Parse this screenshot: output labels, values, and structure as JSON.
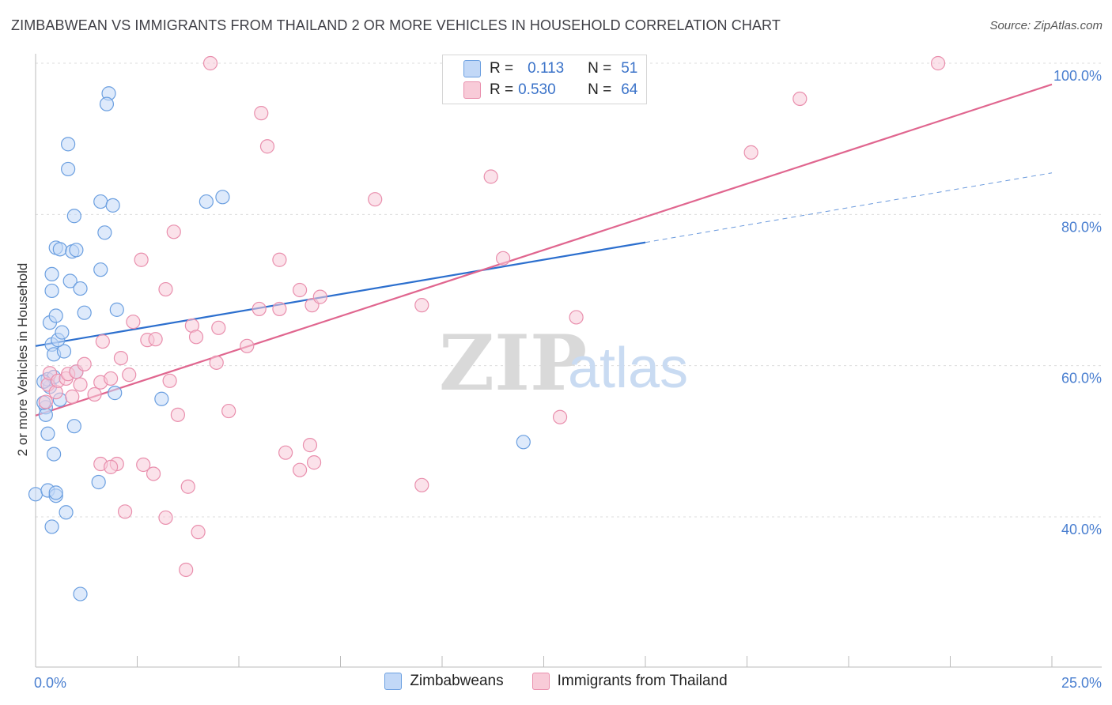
{
  "title": "ZIMBABWEAN VS IMMIGRANTS FROM THAILAND 2 OR MORE VEHICLES IN HOUSEHOLD CORRELATION CHART",
  "source": "Source: ZipAtlas.com",
  "watermark": {
    "zip": "ZIP",
    "atlas": "atlas"
  },
  "colors": {
    "blue_fill": "#c2d8f7",
    "blue_stroke": "#6b9fe0",
    "blue_line": "#2c6fce",
    "pink_fill": "#f8cbd8",
    "pink_stroke": "#e98fad",
    "pink_line": "#e0668f",
    "tick_text": "#4a7fd0",
    "grid": "#dcdcdc"
  },
  "legend": {
    "series1": {
      "r_label": "R =",
      "r_value": "0.113",
      "n_label": "N =",
      "n_value": "51"
    },
    "series2": {
      "r_label": "R =",
      "r_value": "0.530",
      "n_label": "N =",
      "n_value": "64"
    }
  },
  "bottom_legend": {
    "series1": "Zimbabweans",
    "series2": "Immigrants from Thailand"
  },
  "chart_data": {
    "type": "scatter",
    "title": "ZIMBABWEAN VS IMMIGRANTS FROM THAILAND 2 OR MORE VEHICLES IN HOUSEHOLD CORRELATION CHART",
    "xlabel": "",
    "ylabel": "2 or more Vehicles in Household",
    "xlim": [
      0,
      25
    ],
    "ylim": [
      20,
      102
    ],
    "x_tick_labels": [
      {
        "value": 0,
        "label": "0.0%"
      },
      {
        "value": 25,
        "label": "25.0%"
      }
    ],
    "y_tick_labels": [
      {
        "value": 40,
        "label": "40.0%"
      },
      {
        "value": 60,
        "label": "60.0%"
      },
      {
        "value": 80,
        "label": "80.0%"
      },
      {
        "value": 100,
        "label": "100.0%"
      }
    ],
    "series": [
      {
        "name": "Zimbabweans",
        "R": 0.113,
        "N": 51,
        "trend": {
          "x0": 0.0,
          "y0": 62.6,
          "x1": 15.0,
          "y1": 76.3,
          "dashed_to_x": 25.0,
          "dashed_to_y": 85.5
        },
        "points": [
          [
            0.25,
            54.5
          ],
          [
            0.6,
            55.5
          ],
          [
            0.0,
            43.0
          ],
          [
            0.3,
            43.5
          ],
          [
            0.5,
            42.8
          ],
          [
            0.35,
            57.2
          ],
          [
            0.3,
            58.2
          ],
          [
            0.45,
            58.5
          ],
          [
            0.25,
            53.5
          ],
          [
            0.3,
            51.0
          ],
          [
            0.4,
            62.8
          ],
          [
            0.45,
            61.5
          ],
          [
            0.7,
            61.9
          ],
          [
            0.55,
            63.4
          ],
          [
            0.35,
            65.7
          ],
          [
            0.5,
            66.6
          ],
          [
            0.65,
            64.4
          ],
          [
            0.4,
            69.9
          ],
          [
            0.4,
            72.1
          ],
          [
            0.85,
            71.2
          ],
          [
            1.1,
            70.2
          ],
          [
            1.2,
            67.0
          ],
          [
            0.5,
            75.6
          ],
          [
            0.6,
            75.4
          ],
          [
            0.9,
            75.1
          ],
          [
            1.0,
            75.3
          ],
          [
            0.95,
            79.8
          ],
          [
            0.8,
            86.0
          ],
          [
            0.8,
            89.3
          ],
          [
            1.6,
            81.7
          ],
          [
            1.9,
            81.2
          ],
          [
            1.7,
            77.6
          ],
          [
            1.6,
            72.7
          ],
          [
            2.0,
            67.4
          ],
          [
            1.8,
            96.0
          ],
          [
            1.75,
            94.6
          ],
          [
            4.2,
            81.7
          ],
          [
            4.6,
            82.3
          ],
          [
            1.0,
            59.2
          ],
          [
            0.45,
            48.3
          ],
          [
            0.4,
            38.7
          ],
          [
            0.75,
            40.6
          ],
          [
            0.95,
            52.0
          ],
          [
            1.55,
            44.6
          ],
          [
            1.1,
            29.8
          ],
          [
            1.95,
            56.4
          ],
          [
            3.1,
            55.6
          ],
          [
            12.0,
            49.9
          ],
          [
            0.2,
            55.1
          ],
          [
            0.2,
            57.9
          ],
          [
            0.5,
            43.2
          ]
        ]
      },
      {
        "name": "Immigrants from Thailand",
        "R": 0.53,
        "N": 64,
        "trend": {
          "x0": 0.0,
          "y0": 53.4,
          "x1": 25.0,
          "y1": 97.2
        },
        "points": [
          [
            0.25,
            55.2
          ],
          [
            0.3,
            57.5
          ],
          [
            0.35,
            59.0
          ],
          [
            0.5,
            56.5
          ],
          [
            0.55,
            58.0
          ],
          [
            0.75,
            58.3
          ],
          [
            0.8,
            58.9
          ],
          [
            0.9,
            55.9
          ],
          [
            1.0,
            59.2
          ],
          [
            1.1,
            57.5
          ],
          [
            1.2,
            60.2
          ],
          [
            1.45,
            56.2
          ],
          [
            1.6,
            57.8
          ],
          [
            1.65,
            63.2
          ],
          [
            1.85,
            58.3
          ],
          [
            2.1,
            61.0
          ],
          [
            2.3,
            58.8
          ],
          [
            2.4,
            65.8
          ],
          [
            2.6,
            74.0
          ],
          [
            2.75,
            63.4
          ],
          [
            2.95,
            63.5
          ],
          [
            3.2,
            70.1
          ],
          [
            3.3,
            58.0
          ],
          [
            3.4,
            77.7
          ],
          [
            3.5,
            53.5
          ],
          [
            3.85,
            65.3
          ],
          [
            3.95,
            63.8
          ],
          [
            4.5,
            65.0
          ],
          [
            4.45,
            60.4
          ],
          [
            4.75,
            54.0
          ],
          [
            5.2,
            62.6
          ],
          [
            5.5,
            67.5
          ],
          [
            5.55,
            93.4
          ],
          [
            5.7,
            89.0
          ],
          [
            6.0,
            74.0
          ],
          [
            6.0,
            67.5
          ],
          [
            6.5,
            70.0
          ],
          [
            6.8,
            68.0
          ],
          [
            7.0,
            69.1
          ],
          [
            6.15,
            48.5
          ],
          [
            6.5,
            46.2
          ],
          [
            6.75,
            49.5
          ],
          [
            6.85,
            47.2
          ],
          [
            2.0,
            47.0
          ],
          [
            1.6,
            47.0
          ],
          [
            1.85,
            46.6
          ],
          [
            2.65,
            46.9
          ],
          [
            2.9,
            45.7
          ],
          [
            3.75,
            44.0
          ],
          [
            2.2,
            40.7
          ],
          [
            3.2,
            39.9
          ],
          [
            4.0,
            38.0
          ],
          [
            3.7,
            33.0
          ],
          [
            8.35,
            82.0
          ],
          [
            9.5,
            68.0
          ],
          [
            9.5,
            44.2
          ],
          [
            11.2,
            85.0
          ],
          [
            11.5,
            74.2
          ],
          [
            12.9,
            53.2
          ],
          [
            13.3,
            66.4
          ],
          [
            17.6,
            88.2
          ],
          [
            18.8,
            95.3
          ],
          [
            22.2,
            100.0
          ],
          [
            4.3,
            100.0
          ]
        ]
      }
    ]
  }
}
